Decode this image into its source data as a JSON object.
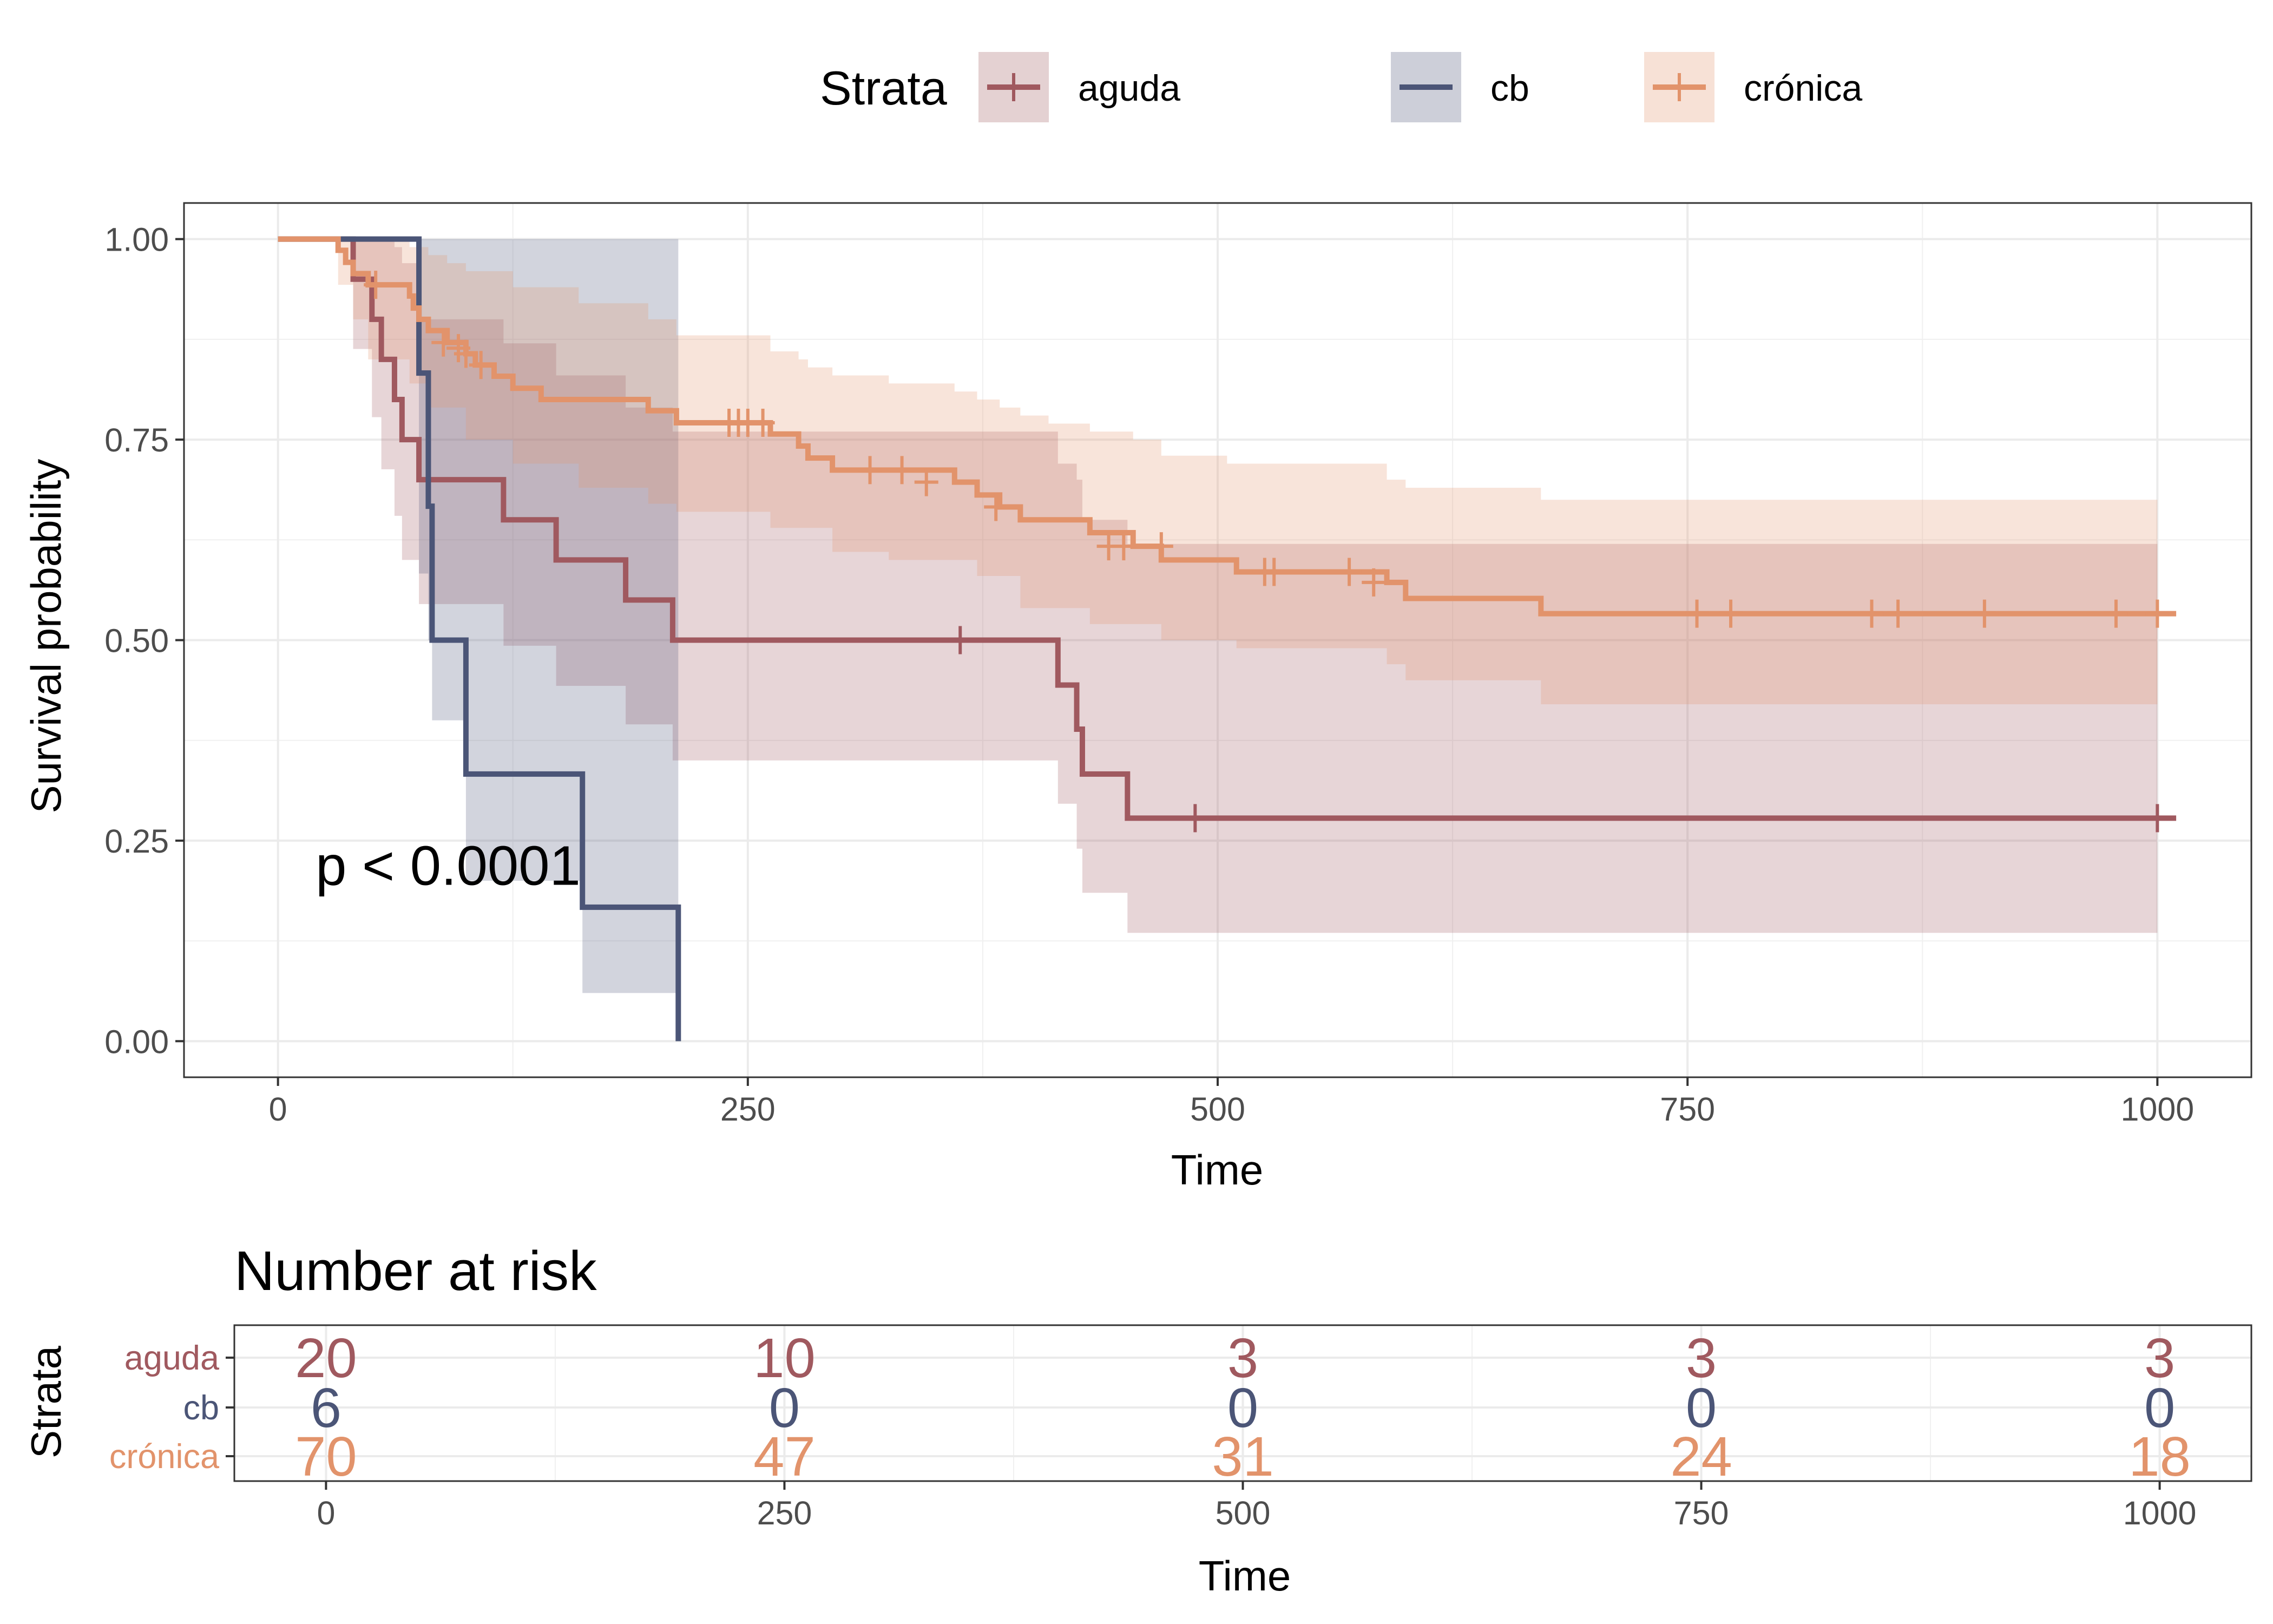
{
  "chart_data": [
    {
      "type": "line",
      "subtype": "kaplan-meier",
      "xlabel": "Time",
      "ylabel": "Survival probability",
      "xlim": [
        -50,
        1050
      ],
      "ylim": [
        -0.045,
        1.045
      ],
      "x_ticks": [
        0,
        250,
        500,
        750,
        1000
      ],
      "x_tick_labels": [
        "0",
        "250",
        "500",
        "750",
        "1000"
      ],
      "y_ticks": [
        0,
        0.25,
        0.5,
        0.75,
        1
      ],
      "y_tick_labels": [
        "0.00",
        "0.25",
        "0.50",
        "0.75",
        "1.00"
      ],
      "grid": true,
      "annotation": {
        "text": "p < 0.0001",
        "x": 20,
        "y": 0.195
      },
      "legend": {
        "title": "Strata",
        "position": "top"
      },
      "series": [
        {
          "name": "aguda",
          "color": "#A0595F",
          "steps": [
            [
              0,
              1
            ],
            [
              40,
              1
            ],
            [
              40,
              0.95
            ],
            [
              50,
              0.9
            ],
            [
              55,
              0.85
            ],
            [
              62,
              0.8
            ],
            [
              66,
              0.75
            ],
            [
              75,
              0.7
            ],
            [
              120,
              0.65
            ],
            [
              148,
              0.6
            ],
            [
              185,
              0.55
            ],
            [
              210,
              0.5
            ],
            [
              415,
              0.5
            ],
            [
              415,
              0.444
            ],
            [
              425,
              0.389
            ],
            [
              428,
              0.333
            ],
            [
              452,
              0.278
            ],
            [
              1000,
              0.278
            ]
          ],
          "lower": [
            [
              40,
              0.863
            ],
            [
              50,
              0.778
            ],
            [
              55,
              0.713
            ],
            [
              62,
              0.655
            ],
            [
              66,
              0.6
            ],
            [
              75,
              0.545
            ],
            [
              120,
              0.493
            ],
            [
              148,
              0.443
            ],
            [
              185,
              0.395
            ],
            [
              210,
              0.35
            ],
            [
              415,
              0.35
            ],
            [
              415,
              0.296
            ],
            [
              425,
              0.24
            ],
            [
              428,
              0.185
            ],
            [
              452,
              0.135
            ],
            [
              1000,
              0.135
            ]
          ],
          "upper": [
            [
              40,
              1
            ],
            [
              50,
              1
            ],
            [
              55,
              1
            ],
            [
              62,
              0.99
            ],
            [
              66,
              0.97
            ],
            [
              75,
              0.9
            ],
            [
              120,
              0.87
            ],
            [
              148,
              0.83
            ],
            [
              185,
              0.79
            ],
            [
              210,
              0.76
            ],
            [
              415,
              0.76
            ],
            [
              415,
              0.72
            ],
            [
              425,
              0.7
            ],
            [
              428,
              0.65
            ],
            [
              452,
              0.62
            ],
            [
              1000,
              0.62
            ]
          ],
          "censored": [
            [
              363,
              0.5
            ],
            [
              488,
              0.278
            ],
            [
              1000,
              0.278
            ]
          ]
        },
        {
          "name": "cb",
          "color": "#4B5577",
          "steps": [
            [
              0,
              1
            ],
            [
              75,
              1
            ],
            [
              75,
              0.833
            ],
            [
              80,
              0.667
            ],
            [
              82,
              0.5
            ],
            [
              100,
              0.5
            ],
            [
              100,
              0.333
            ],
            [
              162,
              0.333
            ],
            [
              162,
              0.167
            ],
            [
              213,
              0.167
            ],
            [
              213,
              0
            ]
          ],
          "lower": [
            [
              75,
              0.583
            ],
            [
              80,
              0.5
            ],
            [
              82,
              0.4
            ],
            [
              100,
              0.2
            ],
            [
              162,
              0.06
            ],
            [
              213,
              0.06
            ]
          ],
          "upper": [
            [
              75,
              1
            ],
            [
              213,
              1
            ]
          ],
          "censored": []
        },
        {
          "name": "crónica",
          "color": "#E2936B",
          "steps": [
            [
              0,
              1
            ],
            [
              32,
              1
            ],
            [
              32,
              0.986
            ],
            [
              36,
              0.971
            ],
            [
              40,
              0.957
            ],
            [
              48,
              0.943
            ],
            [
              70,
              0.929
            ],
            [
              72,
              0.914
            ],
            [
              75,
              0.9
            ],
            [
              80,
              0.886
            ],
            [
              90,
              0.871
            ],
            [
              100,
              0.857
            ],
            [
              105,
              0.843
            ],
            [
              115,
              0.829
            ],
            [
              125,
              0.814
            ],
            [
              140,
              0.8
            ],
            [
              160,
              0.8
            ],
            [
              197,
              0.786
            ],
            [
              212,
              0.771
            ],
            [
              262,
              0.757
            ],
            [
              277,
              0.742
            ],
            [
              282,
              0.727
            ],
            [
              295,
              0.712
            ],
            [
              325,
              0.712
            ],
            [
              360,
              0.697
            ],
            [
              372,
              0.681
            ],
            [
              384,
              0.666
            ],
            [
              395,
              0.65
            ],
            [
              410,
              0.65
            ],
            [
              432,
              0.634
            ],
            [
              455,
              0.617
            ],
            [
              470,
              0.6
            ],
            [
              505,
              0.6
            ],
            [
              510,
              0.585
            ],
            [
              590,
              0.572
            ],
            [
              600,
              0.552
            ],
            [
              670,
              0.552
            ],
            [
              672,
              0.533
            ],
            [
              1000,
              0.533
            ]
          ],
          "lower": [
            [
              32,
              0.943
            ],
            [
              40,
              0.9
            ],
            [
              48,
              0.85
            ],
            [
              70,
              0.82
            ],
            [
              80,
              0.79
            ],
            [
              100,
              0.75
            ],
            [
              125,
              0.72
            ],
            [
              160,
              0.69
            ],
            [
              197,
              0.67
            ],
            [
              212,
              0.66
            ],
            [
              262,
              0.64
            ],
            [
              295,
              0.61
            ],
            [
              325,
              0.6
            ],
            [
              372,
              0.58
            ],
            [
              395,
              0.54
            ],
            [
              432,
              0.52
            ],
            [
              470,
              0.5
            ],
            [
              510,
              0.49
            ],
            [
              590,
              0.47
            ],
            [
              600,
              0.45
            ],
            [
              672,
              0.42
            ],
            [
              1000,
              0.42
            ]
          ],
          "upper": [
            [
              32,
              1
            ],
            [
              48,
              1
            ],
            [
              70,
              0.99
            ],
            [
              80,
              0.98
            ],
            [
              90,
              0.97
            ],
            [
              100,
              0.96
            ],
            [
              125,
              0.94
            ],
            [
              160,
              0.92
            ],
            [
              197,
              0.9
            ],
            [
              212,
              0.88
            ],
            [
              262,
              0.86
            ],
            [
              277,
              0.85
            ],
            [
              282,
              0.84
            ],
            [
              295,
              0.83
            ],
            [
              325,
              0.82
            ],
            [
              360,
              0.81
            ],
            [
              372,
              0.8
            ],
            [
              384,
              0.79
            ],
            [
              395,
              0.78
            ],
            [
              410,
              0.77
            ],
            [
              432,
              0.76
            ],
            [
              455,
              0.75
            ],
            [
              470,
              0.73
            ],
            [
              505,
              0.72
            ],
            [
              510,
              0.72
            ],
            [
              590,
              0.7
            ],
            [
              600,
              0.69
            ],
            [
              672,
              0.675
            ],
            [
              1000,
              0.675
            ]
          ],
          "censored": [
            [
              52,
              0.943
            ],
            [
              88,
              0.871
            ],
            [
              96,
              0.864
            ],
            [
              100,
              0.857
            ],
            [
              108,
              0.843
            ],
            [
              240,
              0.771
            ],
            [
              245,
              0.771
            ],
            [
              250,
              0.771
            ],
            [
              258,
              0.771
            ],
            [
              315,
              0.712
            ],
            [
              332,
              0.712
            ],
            [
              345,
              0.697
            ],
            [
              382,
              0.666
            ],
            [
              442,
              0.617
            ],
            [
              450,
              0.617
            ],
            [
              470,
              0.617
            ],
            [
              525,
              0.585
            ],
            [
              530,
              0.585
            ],
            [
              570,
              0.585
            ],
            [
              583,
              0.572
            ],
            [
              755,
              0.533
            ],
            [
              773,
              0.533
            ],
            [
              848,
              0.533
            ],
            [
              862,
              0.533
            ],
            [
              908,
              0.533
            ],
            [
              978,
              0.533
            ],
            [
              1000,
              0.533
            ]
          ]
        }
      ]
    },
    {
      "type": "table",
      "title": "Number at risk",
      "xlabel": "Time",
      "ylabel": "Strata",
      "columns": [
        0,
        250,
        500,
        750,
        1000
      ],
      "x_tick_labels": [
        "0",
        "250",
        "500",
        "750",
        "1000"
      ],
      "rows": [
        {
          "name": "aguda",
          "color": "#A0595F",
          "values": [
            "20",
            "10",
            "3",
            "3",
            "3"
          ]
        },
        {
          "name": "cb",
          "color": "#4B5577",
          "values": [
            "6",
            "0",
            "0",
            "0",
            "0"
          ]
        },
        {
          "name": "crónica",
          "color": "#E2936B",
          "values": [
            "70",
            "47",
            "31",
            "24",
            "18"
          ]
        }
      ]
    }
  ]
}
